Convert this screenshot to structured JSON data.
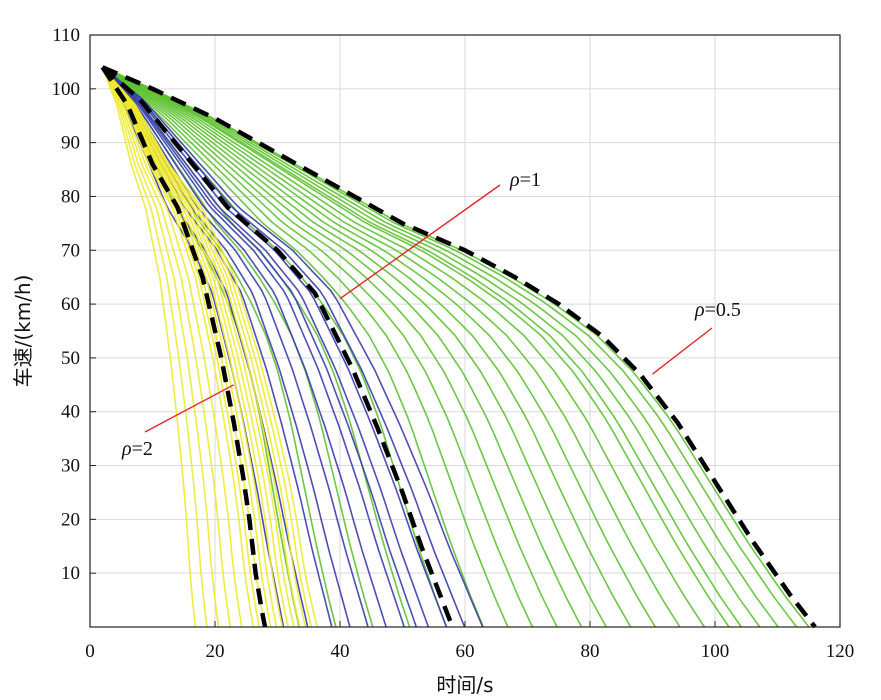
{
  "chart_data": {
    "type": "line",
    "title": "",
    "xlabel": "时间/s",
    "ylabel": "车速/(km/h)",
    "xlim": [
      0,
      120
    ],
    "ylim": [
      0,
      110
    ],
    "xticks": [
      0,
      20,
      40,
      60,
      80,
      100,
      120
    ],
    "yticks": [
      10,
      20,
      30,
      40,
      50,
      60,
      70,
      80,
      90,
      100,
      110
    ],
    "xtick_labels": [
      "0",
      "20",
      "40",
      "60",
      "80",
      "100",
      "120"
    ],
    "ytick_labels": [
      "10",
      "20",
      "30",
      "40",
      "50",
      "60",
      "70",
      "80",
      "90",
      "100",
      "110"
    ],
    "grid": true,
    "legend": "none",
    "series": [
      {
        "name": "ρ=0.5",
        "color": "#5cc12f",
        "mean_curve": {
          "x": [
            2,
            10,
            20,
            30,
            40,
            50,
            60,
            68,
            75,
            82,
            88,
            94,
            100,
            106,
            112,
            116
          ],
          "y": [
            104,
            100,
            94.5,
            88,
            81.5,
            75,
            70,
            65,
            60,
            54,
            47,
            38,
            27,
            16,
            6,
            0
          ]
        },
        "sample_end_times_s": [
          32,
          38,
          44,
          50,
          56,
          62,
          66,
          70,
          74,
          78,
          82,
          86,
          90,
          94,
          98,
          102,
          104,
          107,
          110,
          113,
          115
        ]
      },
      {
        "name": "ρ=1",
        "color": "#3a3cae",
        "mean_curve": {
          "x": [
            2,
            8,
            15,
            22,
            30,
            36,
            42,
            46,
            50,
            53,
            56,
            58
          ],
          "y": [
            104,
            98,
            88,
            78,
            70,
            62,
            48,
            37,
            25,
            15,
            6,
            0
          ]
        },
        "sample_end_times_s": [
          30,
          34,
          38,
          41,
          44,
          47,
          50,
          52,
          54,
          57,
          60,
          63
        ]
      },
      {
        "name": "ρ=2",
        "color": "#f0ea2b",
        "mean_curve": {
          "x": [
            2,
            6,
            10,
            14,
            18,
            21,
            23,
            24.5,
            25.5,
            26.5,
            27.5,
            28
          ],
          "y": [
            104,
            97,
            86,
            78,
            65,
            50,
            38,
            28,
            20,
            10,
            3,
            0
          ]
        },
        "sample_end_times_s": [
          16,
          18,
          20,
          22,
          24,
          26,
          27,
          28,
          29,
          30,
          31,
          32,
          33,
          34,
          35,
          36,
          37
        ]
      }
    ],
    "annotations": [
      {
        "label": "ρ=1",
        "rho": "ρ",
        "value": "=1",
        "points_to": {
          "x": 40,
          "y": 61
        }
      },
      {
        "label": "ρ=0.5",
        "rho": "ρ",
        "value": "=0.5",
        "points_to": {
          "x": 90,
          "y": 47
        }
      },
      {
        "label": "ρ=2",
        "rho": "ρ",
        "value": "=2",
        "points_to": {
          "x": 23,
          "y": 45
        }
      }
    ]
  }
}
